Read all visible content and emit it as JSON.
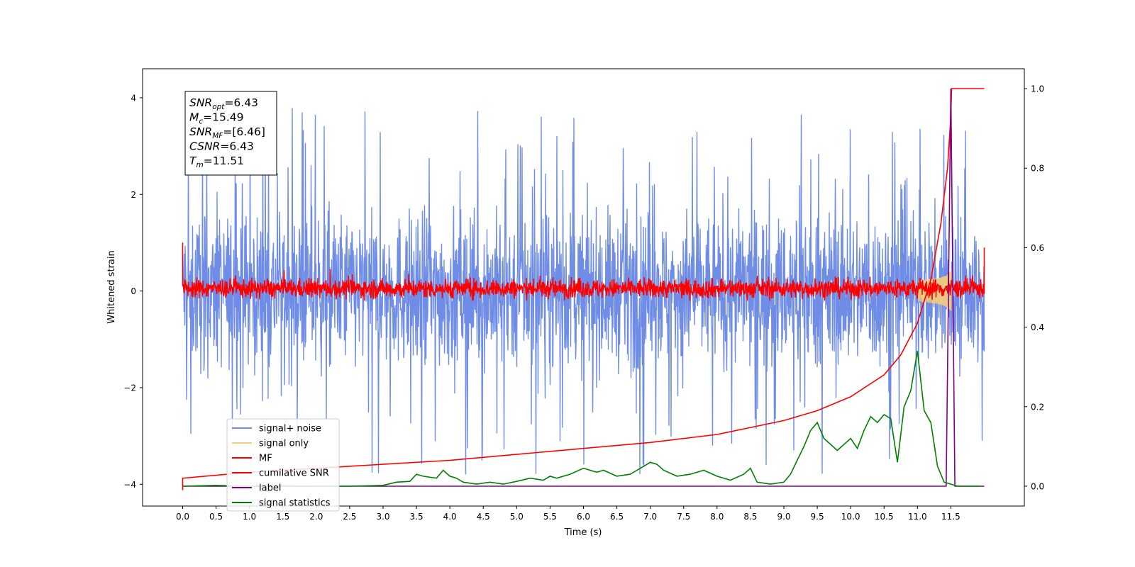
{
  "chart_data": {
    "type": "line",
    "title": "",
    "xlabel": "Time (s)",
    "ylabel": "Whitened strain",
    "y2label": "",
    "xlim": [
      -0.6,
      12.6
    ],
    "ylim": [
      -4.45,
      4.6
    ],
    "y2lim": [
      -0.05,
      1.05
    ],
    "xticks": [
      "0.0",
      "0.5",
      "1.0",
      "1.5",
      "2.0",
      "2.5",
      "3.0",
      "3.5",
      "4.0",
      "4.5",
      "5.0",
      "5.5",
      "6.0",
      "6.5",
      "7.0",
      "7.5",
      "8.0",
      "8.5",
      "9.0",
      "9.5",
      "10.0",
      "10.5",
      "11.0",
      "11.5"
    ],
    "yticks": [
      "4",
      "2",
      "0",
      "−2",
      "−4"
    ],
    "y2ticks": [
      "1.0",
      "0.8",
      "0.6",
      "0.4",
      "0.2",
      "0.0"
    ],
    "grid": false,
    "legend_position": "lower-left",
    "annotation": {
      "lines": [
        {
          "base": "SNR",
          "sub": "opt",
          "rest": "=6.43"
        },
        {
          "base": "M",
          "sub": "c",
          "rest": "=15.49"
        },
        {
          "base": "SNR",
          "sub": "MF",
          "rest": "=[6.46]"
        },
        {
          "base": "CSNR",
          "sub": "",
          "rest": "=6.43"
        },
        {
          "base": "T",
          "sub": "m",
          "rest": "=11.51"
        }
      ]
    },
    "series": [
      {
        "name": "signal+ noise",
        "axis": "left",
        "color": "#6f8de6",
        "note": "whitened noise samples, spread about -1.2 to 1.2 with spikes reaching about ±4",
        "x_range": [
          0.0,
          12.0
        ],
        "peak_max": 4.15,
        "peak_min": -4.05
      },
      {
        "name": "signal only",
        "axis": "left",
        "color": "#f5cd7a",
        "chirp_envelope_at_merger": 0.5,
        "merger_time": 11.51
      },
      {
        "name": "MF",
        "axis": "left",
        "color": "#ff0000",
        "band": [
          -0.2,
          0.35
        ],
        "x_range": [
          0.0,
          12.0
        ]
      },
      {
        "name": "cumilative SNR",
        "axis": "right",
        "color": "#ff0000",
        "x": [
          0,
          1,
          2,
          3,
          4,
          5,
          6,
          7,
          8,
          9,
          9.5,
          10,
          10.5,
          10.75,
          11,
          11.2,
          11.35,
          11.45,
          11.5,
          11.51,
          12.0
        ],
        "values": [
          0.02,
          0.035,
          0.045,
          0.055,
          0.065,
          0.08,
          0.095,
          0.11,
          0.13,
          0.165,
          0.19,
          0.225,
          0.28,
          0.33,
          0.41,
          0.52,
          0.66,
          0.8,
          0.93,
          1.0,
          1.0
        ]
      },
      {
        "name": "label",
        "axis": "right",
        "color": "#800080",
        "x": [
          0,
          11.43,
          11.5,
          11.56,
          12.0
        ],
        "values": [
          0,
          0,
          1,
          0,
          0
        ]
      },
      {
        "name": "signal statistics",
        "axis": "right",
        "color": "#008000",
        "x": [
          0,
          0.5,
          1,
          1.5,
          2,
          2.5,
          3,
          3.2,
          3.4,
          3.5,
          3.6,
          3.8,
          3.9,
          4.0,
          4.1,
          4.2,
          4.4,
          4.6,
          4.8,
          5.0,
          5.2,
          5.4,
          5.5,
          5.6,
          5.8,
          6.0,
          6.2,
          6.3,
          6.5,
          6.7,
          6.9,
          7.0,
          7.1,
          7.2,
          7.4,
          7.6,
          7.8,
          8.0,
          8.2,
          8.4,
          8.5,
          8.6,
          8.8,
          9.0,
          9.1,
          9.2,
          9.3,
          9.4,
          9.5,
          9.6,
          9.8,
          10.0,
          10.1,
          10.2,
          10.3,
          10.4,
          10.5,
          10.6,
          10.7,
          10.8,
          10.9,
          11.0,
          11.1,
          11.2,
          11.3,
          11.4,
          11.6,
          11.95
        ],
        "values": [
          0.0,
          0.002,
          0.0,
          0.001,
          0.0,
          0.0,
          0.002,
          0.01,
          0.012,
          0.03,
          0.025,
          0.02,
          0.04,
          0.025,
          0.02,
          0.01,
          0.005,
          0.01,
          0.005,
          0.012,
          0.02,
          0.015,
          0.025,
          0.02,
          0.03,
          0.045,
          0.035,
          0.04,
          0.025,
          0.03,
          0.05,
          0.06,
          0.055,
          0.04,
          0.025,
          0.03,
          0.04,
          0.025,
          0.015,
          0.03,
          0.045,
          0.01,
          0.005,
          0.01,
          0.03,
          0.065,
          0.1,
          0.14,
          0.16,
          0.12,
          0.09,
          0.12,
          0.095,
          0.14,
          0.175,
          0.16,
          0.18,
          0.17,
          0.06,
          0.2,
          0.24,
          0.34,
          0.19,
          0.16,
          0.05,
          0.01,
          0.0,
          0.0
        ]
      }
    ]
  }
}
